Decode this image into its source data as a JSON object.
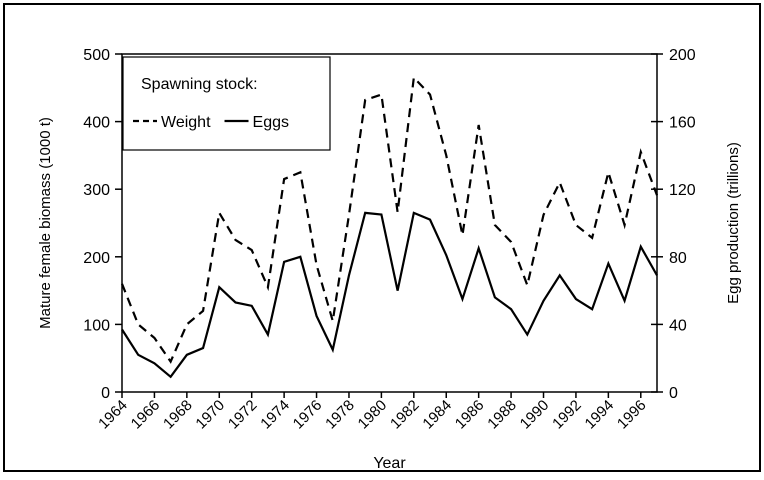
{
  "chart_data": {
    "type": "line",
    "x_label": "Year",
    "y_label": "Mature female biomass (1000 t)",
    "y2_label": "Egg production (trillions)",
    "legend_title": "Spawning stock:",
    "legend": "upper left",
    "x": [
      1964,
      1965,
      1966,
      1967,
      1968,
      1969,
      1970,
      1971,
      1972,
      1973,
      1974,
      1975,
      1976,
      1977,
      1978,
      1979,
      1980,
      1981,
      1982,
      1983,
      1984,
      1985,
      1986,
      1987,
      1988,
      1989,
      1990,
      1991,
      1992,
      1993,
      1994,
      1995,
      1996,
      1997
    ],
    "xlim": [
      1964,
      1997
    ],
    "xticks": [
      1964,
      1966,
      1968,
      1970,
      1972,
      1974,
      1976,
      1978,
      1980,
      1982,
      1984,
      1986,
      1988,
      1990,
      1992,
      1994,
      1996
    ],
    "ylim": [
      0,
      500
    ],
    "yticks": [
      0,
      100,
      200,
      300,
      400,
      500
    ],
    "y2lim": [
      0,
      200
    ],
    "y2ticks": [
      0,
      40,
      80,
      120,
      160,
      200
    ],
    "series": [
      {
        "name": "Weight",
        "color": "#000000",
        "line_style": "dashed",
        "values": [
          160,
          100,
          80,
          45,
          100,
          120,
          265,
          225,
          210,
          155,
          315,
          325,
          188,
          105,
          262,
          432,
          440,
          266,
          465,
          440,
          350,
          232,
          395,
          247,
          222,
          158,
          262,
          310,
          247,
          228,
          325,
          247,
          355,
          291
        ]
      },
      {
        "name": "Eggs",
        "color": "#000000",
        "line_style": "solid",
        "axis": "y2",
        "values": [
          37,
          22,
          17,
          9,
          22,
          26,
          62,
          53,
          51,
          34,
          77,
          80,
          45,
          25,
          69,
          106,
          105,
          60,
          106,
          102,
          81,
          55,
          85,
          56,
          49,
          34,
          54,
          69,
          55,
          49,
          76,
          54,
          86,
          69
        ]
      }
    ]
  }
}
